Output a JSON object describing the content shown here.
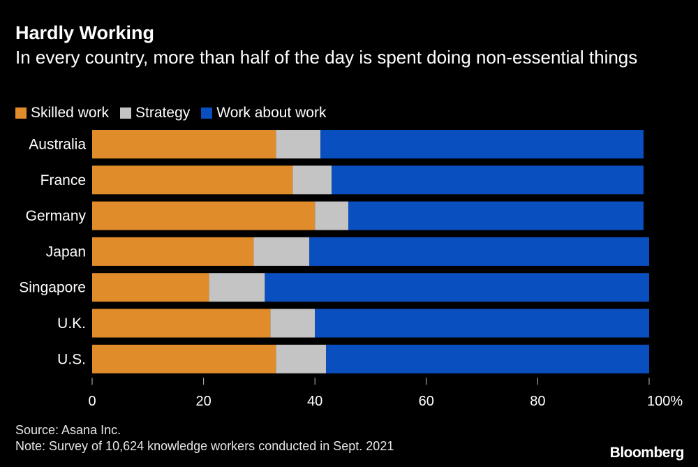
{
  "colors": {
    "skilled": "#e08c2b",
    "strategy": "#c4c4c4",
    "work_about_work": "#0a4fc0",
    "text": "#ffffff",
    "axis": "#bfbfbf",
    "background": "#000000"
  },
  "header": {
    "title": "Hardly Working",
    "subtitle": "In every country, more than half of the day is spent doing non-essential things"
  },
  "footer": {
    "source": "Source: Asana Inc.",
    "note": "Note: Survey of 10,624 knowledge workers conducted in Sept. 2021",
    "brand": "Bloomberg"
  },
  "chart_data": {
    "type": "bar",
    "orientation": "horizontal",
    "stacked": true,
    "title": "Hardly Working",
    "subtitle": "In every country, more than half of the day is spent doing non-essential things",
    "xlabel": "",
    "ylabel": "",
    "xlim": [
      0,
      100
    ],
    "x_ticks": [
      0,
      20,
      40,
      60,
      80,
      100
    ],
    "x_tick_labels": [
      "0",
      "20",
      "40",
      "60",
      "80",
      "100%"
    ],
    "grid": false,
    "legend_position": "top-left",
    "categories": [
      "Australia",
      "France",
      "Germany",
      "Japan",
      "Singapore",
      "U.K.",
      "U.S."
    ],
    "series": [
      {
        "name": "Skilled work",
        "color": "#e08c2b",
        "values": [
          33,
          36,
          40,
          29,
          21,
          32,
          33
        ]
      },
      {
        "name": "Strategy",
        "color": "#c4c4c4",
        "values": [
          8,
          7,
          6,
          10,
          10,
          8,
          9
        ]
      },
      {
        "name": "Work about work",
        "color": "#0a4fc0",
        "values": [
          58,
          56,
          53,
          61,
          69,
          60,
          58
        ]
      }
    ]
  }
}
